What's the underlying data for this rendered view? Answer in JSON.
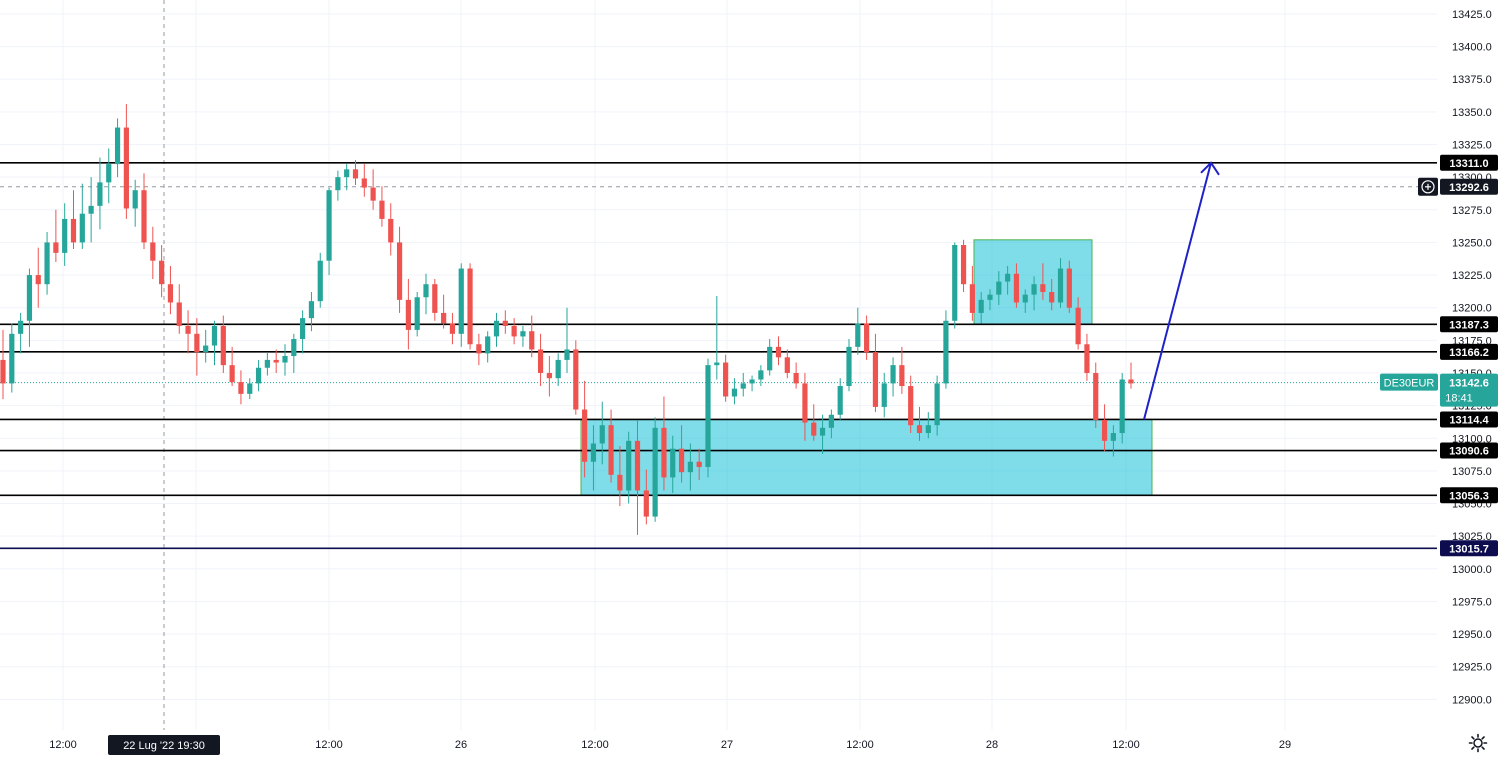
{
  "chart_data": {
    "type": "candlestick",
    "symbol": "DE30EUR",
    "last_price": "13142.6",
    "countdown": "18:41",
    "crosshair": {
      "time_label": "22 Lug '22  19:30",
      "price_label": "13292.6"
    },
    "ylim": [
      12875,
      13430
    ],
    "y_ticks": [
      12900,
      12925,
      12950,
      12975,
      13000,
      13025,
      13050,
      13075,
      13100,
      13125,
      13150,
      13175,
      13200,
      13225,
      13250,
      13275,
      13300,
      13325,
      13350,
      13375,
      13400,
      13425
    ],
    "x_ticks": [
      "12:00",
      "26",
      "12:00",
      "27",
      "12:00",
      "28",
      "12:00",
      "29"
    ],
    "horizontal_levels": [
      {
        "value": 13311.0,
        "label": "13311.0",
        "color": "#000000"
      },
      {
        "value": 13187.3,
        "label": "13187.3",
        "color": "#000000"
      },
      {
        "value": 13166.2,
        "label": "13166.2",
        "color": "#000000"
      },
      {
        "value": 13114.4,
        "label": "13114.4",
        "color": "#000000"
      },
      {
        "value": 13090.6,
        "label": "13090.6",
        "color": "#000000"
      },
      {
        "value": 13056.3,
        "label": "13056.3",
        "color": "#000000"
      },
      {
        "value": 13015.7,
        "label": "13015.7",
        "color": "#0c0c4e"
      }
    ],
    "zones": [
      {
        "name": "support-zone",
        "from": 13056.3,
        "to": 13114.4
      },
      {
        "name": "consolidation-zone",
        "from": 13187.3,
        "to": 13252
      }
    ],
    "projection": {
      "from": 13114.4,
      "to": 13311.0
    },
    "candles": [
      [
        13160,
        13183,
        13130,
        13142
      ],
      [
        13142,
        13188,
        13135,
        13180
      ],
      [
        13180,
        13196,
        13165,
        13190
      ],
      [
        13190,
        13230,
        13170,
        13225
      ],
      [
        13225,
        13246,
        13200,
        13218
      ],
      [
        13218,
        13258,
        13210,
        13250
      ],
      [
        13250,
        13275,
        13235,
        13242
      ],
      [
        13242,
        13280,
        13232,
        13268
      ],
      [
        13268,
        13290,
        13245,
        13250
      ],
      [
        13250,
        13295,
        13245,
        13272
      ],
      [
        13272,
        13300,
        13250,
        13278
      ],
      [
        13278,
        13315,
        13260,
        13296
      ],
      [
        13296,
        13322,
        13280,
        13310
      ],
      [
        13310,
        13345,
        13300,
        13338
      ],
      [
        13338,
        13356,
        13268,
        13276
      ],
      [
        13276,
        13298,
        13262,
        13290
      ],
      [
        13290,
        13303,
        13245,
        13250
      ],
      [
        13250,
        13262,
        13222,
        13236
      ],
      [
        13236,
        13248,
        13208,
        13218
      ],
      [
        13218,
        13232,
        13195,
        13204
      ],
      [
        13204,
        13218,
        13180,
        13186
      ],
      [
        13186,
        13198,
        13165,
        13180
      ],
      [
        13180,
        13192,
        13148,
        13166
      ],
      [
        13166,
        13183,
        13158,
        13171
      ],
      [
        13171,
        13190,
        13156,
        13186
      ],
      [
        13186,
        13194,
        13150,
        13156
      ],
      [
        13156,
        13170,
        13140,
        13143
      ],
      [
        13143,
        13152,
        13126,
        13134
      ],
      [
        13134,
        13146,
        13130,
        13142
      ],
      [
        13142,
        13160,
        13136,
        13154
      ],
      [
        13154,
        13166,
        13148,
        13160
      ],
      [
        13160,
        13168,
        13150,
        13158
      ],
      [
        13158,
        13172,
        13148,
        13163
      ],
      [
        13163,
        13180,
        13150,
        13176
      ],
      [
        13176,
        13198,
        13165,
        13192
      ],
      [
        13192,
        13212,
        13182,
        13205
      ],
      [
        13205,
        13242,
        13200,
        13236
      ],
      [
        13236,
        13292,
        13225,
        13290
      ],
      [
        13290,
        13305,
        13282,
        13300
      ],
      [
        13300,
        13310,
        13290,
        13306
      ],
      [
        13306,
        13313,
        13294,
        13299
      ],
      [
        13299,
        13310,
        13285,
        13292
      ],
      [
        13292,
        13306,
        13275,
        13282
      ],
      [
        13282,
        13293,
        13262,
        13268
      ],
      [
        13268,
        13280,
        13240,
        13250
      ],
      [
        13250,
        13262,
        13196,
        13206
      ],
      [
        13206,
        13222,
        13168,
        13183
      ],
      [
        13183,
        13212,
        13178,
        13208
      ],
      [
        13208,
        13226,
        13195,
        13218
      ],
      [
        13218,
        13222,
        13190,
        13196
      ],
      [
        13196,
        13210,
        13184,
        13188
      ],
      [
        13188,
        13196,
        13172,
        13180
      ],
      [
        13180,
        13234,
        13170,
        13230
      ],
      [
        13230,
        13234,
        13168,
        13172
      ],
      [
        13172,
        13180,
        13156,
        13165
      ],
      [
        13165,
        13182,
        13158,
        13178
      ],
      [
        13178,
        13196,
        13170,
        13190
      ],
      [
        13190,
        13198,
        13180,
        13186
      ],
      [
        13186,
        13192,
        13172,
        13178
      ],
      [
        13178,
        13186,
        13170,
        13182
      ],
      [
        13182,
        13194,
        13162,
        13168
      ],
      [
        13168,
        13180,
        13140,
        13150
      ],
      [
        13150,
        13163,
        13132,
        13146
      ],
      [
        13146,
        13165,
        13140,
        13160
      ],
      [
        13160,
        13200,
        13150,
        13168
      ],
      [
        13168,
        13175,
        13118,
        13122
      ],
      [
        13122,
        13144,
        13070,
        13082
      ],
      [
        13082,
        13110,
        13060,
        13096
      ],
      [
        13096,
        13128,
        13080,
        13110
      ],
      [
        13110,
        13122,
        13066,
        13072
      ],
      [
        13072,
        13094,
        13048,
        13060
      ],
      [
        13060,
        13105,
        13050,
        13098
      ],
      [
        13098,
        13114,
        13026,
        13060
      ],
      [
        13060,
        13076,
        13034,
        13040
      ],
      [
        13040,
        13116,
        13036,
        13108
      ],
      [
        13108,
        13132,
        13060,
        13070
      ],
      [
        13070,
        13102,
        13058,
        13092
      ],
      [
        13092,
        13110,
        13066,
        13074
      ],
      [
        13074,
        13096,
        13060,
        13082
      ],
      [
        13082,
        13092,
        13068,
        13078
      ],
      [
        13078,
        13161,
        13070,
        13156
      ],
      [
        13156,
        13209,
        13145,
        13158
      ],
      [
        13158,
        13164,
        13128,
        13132
      ],
      [
        13132,
        13146,
        13126,
        13138
      ],
      [
        13138,
        13150,
        13132,
        13142
      ],
      [
        13142,
        13148,
        13136,
        13145
      ],
      [
        13145,
        13156,
        13140,
        13152
      ],
      [
        13152,
        13176,
        13148,
        13170
      ],
      [
        13170,
        13178,
        13156,
        13162
      ],
      [
        13162,
        13168,
        13146,
        13150
      ],
      [
        13150,
        13158,
        13138,
        13142
      ],
      [
        13142,
        13150,
        13098,
        13112
      ],
      [
        13112,
        13126,
        13098,
        13102
      ],
      [
        13102,
        13118,
        13088,
        13108
      ],
      [
        13108,
        13122,
        13100,
        13118
      ],
      [
        13118,
        13146,
        13114,
        13140
      ],
      [
        13140,
        13176,
        13136,
        13170
      ],
      [
        13170,
        13200,
        13164,
        13188
      ],
      [
        13188,
        13194,
        13160,
        13166
      ],
      [
        13166,
        13180,
        13120,
        13124
      ],
      [
        13124,
        13150,
        13116,
        13142
      ],
      [
        13142,
        13162,
        13132,
        13156
      ],
      [
        13156,
        13170,
        13134,
        13140
      ],
      [
        13140,
        13148,
        13104,
        13110
      ],
      [
        13110,
        13124,
        13098,
        13104
      ],
      [
        13104,
        13120,
        13100,
        13110
      ],
      [
        13110,
        13148,
        13102,
        13142
      ],
      [
        13142,
        13198,
        13138,
        13190
      ],
      [
        13190,
        13250,
        13184,
        13248
      ],
      [
        13248,
        13252,
        13212,
        13218
      ],
      [
        13218,
        13232,
        13190,
        13196
      ],
      [
        13196,
        13212,
        13188,
        13206
      ],
      [
        13206,
        13214,
        13198,
        13210
      ],
      [
        13210,
        13228,
        13202,
        13220
      ],
      [
        13220,
        13232,
        13210,
        13226
      ],
      [
        13226,
        13234,
        13200,
        13204
      ],
      [
        13204,
        13214,
        13196,
        13210
      ],
      [
        13210,
        13224,
        13198,
        13218
      ],
      [
        13218,
        13234,
        13206,
        13212
      ],
      [
        13212,
        13222,
        13198,
        13204
      ],
      [
        13204,
        13238,
        13200,
        13230
      ],
      [
        13230,
        13236,
        13196,
        13200
      ],
      [
        13200,
        13208,
        13168,
        13172
      ],
      [
        13172,
        13180,
        13144,
        13150
      ],
      [
        13150,
        13158,
        13108,
        13114
      ],
      [
        13114,
        13126,
        13090,
        13098
      ],
      [
        13098,
        13110,
        13086,
        13104
      ],
      [
        13104,
        13150,
        13096,
        13145
      ],
      [
        13145,
        13158,
        13138,
        13142
      ]
    ]
  }
}
